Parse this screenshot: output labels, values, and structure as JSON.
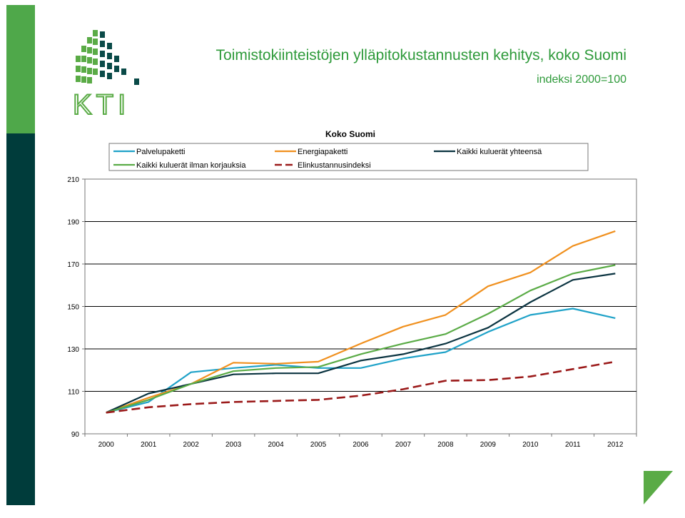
{
  "header": {
    "title": "Toimistokiinteistöjen ylläpitokustannusten kehitys, koko Suomi",
    "subtitle": "indeksi 2000=100",
    "logo_text": "KTI"
  },
  "colors": {
    "brand_green": "#4fa84a",
    "brand_dark": "#003c3b",
    "title_green": "#2e9a3a"
  },
  "chart_data": {
    "type": "line",
    "title": "Koko Suomi",
    "xlabel": "",
    "ylabel": "",
    "ylim": [
      90,
      210
    ],
    "yticks": [
      90,
      110,
      130,
      150,
      170,
      190,
      210
    ],
    "grid": true,
    "legend_position": "top",
    "x": [
      "2000",
      "2001",
      "2002",
      "2003",
      "2004",
      "2005",
      "2006",
      "2007",
      "2008",
      "2009",
      "2010",
      "2011",
      "2012"
    ],
    "series": [
      {
        "name": "Palvelupaketti",
        "color": "#1fa2c8",
        "dashed": false,
        "values": [
          100,
          105,
          119,
          121,
          122.5,
          121,
          121,
          125.5,
          128.5,
          138,
          146,
          149,
          144.5
        ]
      },
      {
        "name": "Energiapaketti",
        "color": "#f0901e",
        "dashed": false,
        "values": [
          100,
          107,
          113.5,
          123.5,
          123,
          124,
          132.5,
          140.5,
          146,
          159.5,
          166,
          178.5,
          185.5
        ]
      },
      {
        "name": "Kaikki kuluerät yhteensä",
        "color": "#0a3340",
        "dashed": false,
        "values": [
          100,
          109,
          113.5,
          118,
          118.5,
          118.5,
          124.5,
          127.5,
          132.5,
          140,
          152,
          162.5,
          165.5
        ]
      },
      {
        "name": "Kaikki kuluerät ilman korjauksia",
        "color": "#5aab46",
        "dashed": false,
        "values": [
          100,
          106,
          113.5,
          119.5,
          121,
          121.5,
          127.5,
          132.5,
          137,
          146.5,
          157.5,
          165.5,
          169.5
        ]
      },
      {
        "name": "Elinkustannusindeksi",
        "color": "#9b1a1a",
        "dashed": true,
        "values": [
          100,
          102.5,
          104,
          105,
          105.5,
          106,
          108,
          111,
          115,
          115.3,
          117,
          120.5,
          124
        ]
      }
    ]
  }
}
